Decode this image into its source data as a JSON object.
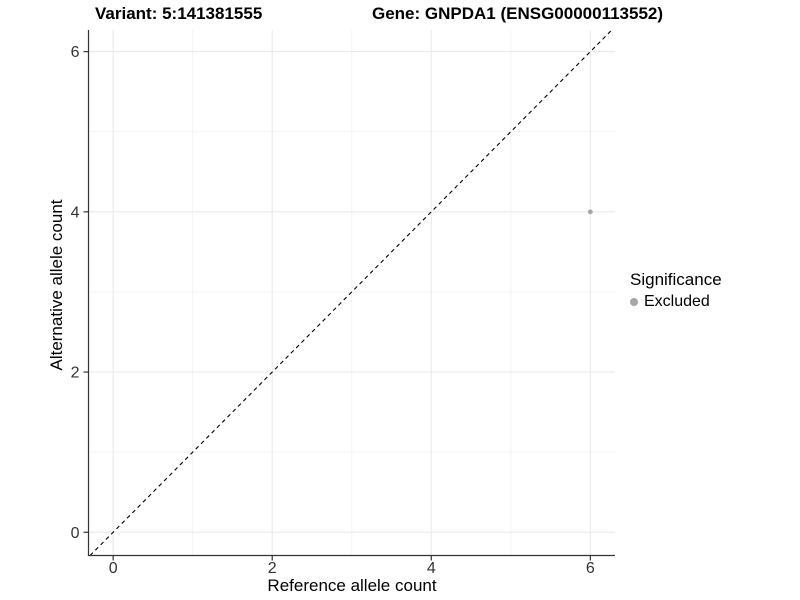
{
  "header": {
    "variant_title": "Variant: 5:141381555",
    "gene_title": "Gene: GNPDA1 (ENSG00000113552)"
  },
  "axes": {
    "x_label": "Reference allele count",
    "y_label": "Alternative allele count"
  },
  "legend": {
    "title": "Significance",
    "items": [
      {
        "label": "Excluded",
        "color": "#a6a6a6"
      }
    ]
  },
  "colors": {
    "background": "#ffffff",
    "grid_major": "#e8e8e8",
    "grid_minor": "#f3f3f3",
    "axis": "#333333",
    "tick_text": "#333333",
    "title_text": "#000000",
    "identity_line": "#000000",
    "point": "#a6a6a6"
  },
  "chart_data": {
    "type": "scatter",
    "title": "Variant: 5:141381555    Gene: GNPDA1 (ENSG00000113552)",
    "xlabel": "Reference allele count",
    "ylabel": "Alternative allele count",
    "xlim": [
      -0.31,
      6.31
    ],
    "ylim": [
      -0.29,
      6.27
    ],
    "x_ticks": [
      0,
      2,
      4,
      6
    ],
    "y_ticks": [
      0,
      2,
      4,
      6
    ],
    "x_minor": [
      1,
      3,
      5
    ],
    "y_minor": [
      1,
      3,
      5
    ],
    "grid": true,
    "legend_position": "right",
    "series": [
      {
        "name": "Excluded",
        "color": "#a6a6a6",
        "marker_size": 2.4,
        "points": [
          {
            "x": 6,
            "y": 4
          }
        ]
      }
    ],
    "reference_line": {
      "kind": "identity",
      "slope": 1,
      "intercept": 0,
      "style": "dashed",
      "color": "#000000"
    }
  }
}
